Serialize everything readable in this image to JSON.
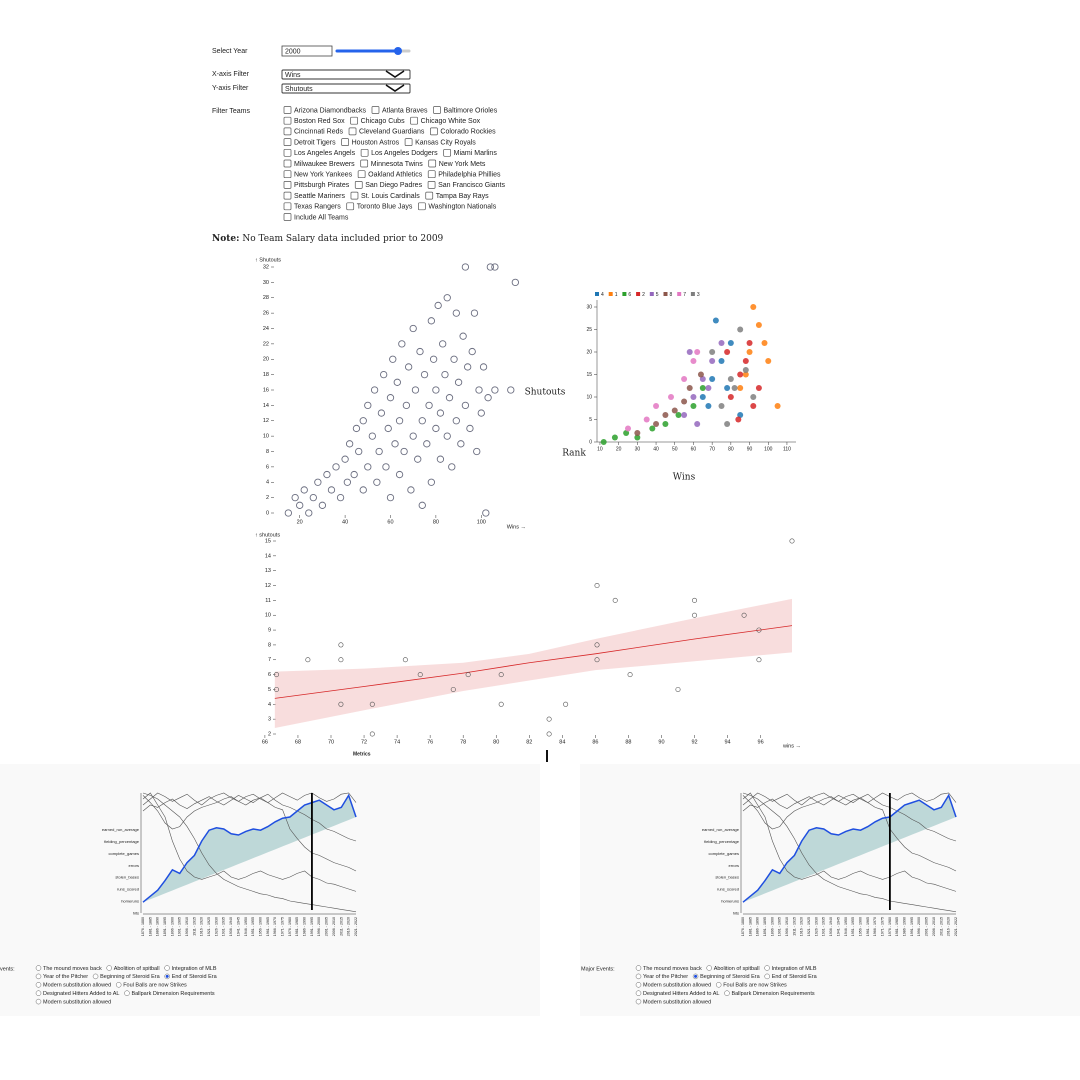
{
  "controls": {
    "year_label": "Select Year",
    "year_value": "2000",
    "x_label": "X-axis Filter",
    "x_value": "Wins",
    "y_label": "Y-axis Filter",
    "y_value": "Shutouts",
    "teams_label": "Filter Teams",
    "teams": [
      [
        "Arizona Diamondbacks",
        "Atlanta Braves",
        "Baltimore Orioles"
      ],
      [
        "Boston Red Sox",
        "Chicago Cubs",
        "Chicago White Sox"
      ],
      [
        "Cincinnati Reds",
        "Cleveland Guardians",
        "Colorado Rockies"
      ],
      [
        "Detroit Tigers",
        "Houston Astros",
        "Kansas City Royals"
      ],
      [
        "Los Angeles Angels",
        "Los Angeles Dodgers",
        "Miami Marlins"
      ],
      [
        "Milwaukee Brewers",
        "Minnesota Twins",
        "New York Mets"
      ],
      [
        "New York Yankees",
        "Oakland Athletics",
        "Philadelphia Phillies"
      ],
      [
        "Pittsburgh Pirates",
        "San Diego Padres",
        "San Francisco Giants"
      ],
      [
        "Seattle Mariners",
        "St. Louis Cardinals",
        "Tampa Bay Rays"
      ],
      [
        "Texas Rangers",
        "Toronto Blue Jays",
        "Washington Nationals"
      ],
      [
        "Include All Teams"
      ]
    ],
    "note_bold": "Note:",
    "note_text": "No Team Salary data included prior to 2009"
  },
  "chart_data": [
    {
      "type": "scatter",
      "y_label": "↑ Shutouts",
      "x_label": "Wins →",
      "color": "#6b6e80",
      "xlim": [
        10,
        116
      ],
      "ylim": [
        0,
        32
      ],
      "xticks": [
        20,
        40,
        60,
        80,
        100
      ],
      "yticks": [
        0,
        2,
        4,
        6,
        8,
        10,
        12,
        14,
        16,
        18,
        20,
        22,
        24,
        26,
        28,
        30,
        32
      ],
      "x": [
        15,
        18,
        20,
        22,
        24,
        26,
        28,
        30,
        32,
        34,
        36,
        38,
        40,
        41,
        42,
        44,
        45,
        46,
        48,
        48,
        50,
        50,
        52,
        53,
        54,
        55,
        56,
        57,
        58,
        59,
        60,
        60,
        61,
        62,
        63,
        64,
        64,
        65,
        66,
        67,
        68,
        69,
        70,
        70,
        71,
        72,
        73,
        74,
        74,
        75,
        76,
        77,
        78,
        78,
        79,
        80,
        80,
        81,
        82,
        82,
        83,
        84,
        85,
        85,
        86,
        87,
        88,
        89,
        89,
        90,
        91,
        92,
        93,
        94,
        95,
        96,
        97,
        98,
        99,
        100,
        101,
        102,
        103,
        106,
        115,
        93,
        104,
        106,
        113
      ],
      "values": [
        0,
        2,
        1,
        3,
        0,
        2,
        4,
        1,
        5,
        3,
        6,
        2,
        7,
        4,
        9,
        5,
        11,
        8,
        3,
        12,
        6,
        14,
        10,
        16,
        4,
        8,
        13,
        18,
        6,
        11,
        2,
        15,
        20,
        9,
        17,
        5,
        12,
        22,
        8,
        14,
        19,
        3,
        10,
        24,
        16,
        7,
        21,
        12,
        1,
        18,
        9,
        14,
        25,
        4,
        20,
        11,
        16,
        27,
        7,
        13,
        22,
        18,
        10,
        28,
        15,
        6,
        20,
        12,
        26,
        17,
        9,
        23,
        14,
        19,
        11,
        21,
        26,
        8,
        16,
        13,
        19,
        0,
        15,
        16,
        30,
        32,
        32,
        32,
        16
      ]
    },
    {
      "type": "scatter",
      "y_label": "Shutouts",
      "x_label": "Wins",
      "color_label": "Rank",
      "xlim": [
        5,
        115
      ],
      "ylim": [
        0,
        33
      ],
      "xticks": [
        10,
        20,
        30,
        40,
        50,
        60,
        70,
        80,
        90,
        100,
        110
      ],
      "yticks": [
        0,
        5,
        10,
        15,
        20,
        25,
        30
      ],
      "series": [
        {
          "name": "4",
          "color": "#1f77b4",
          "x": [
            65,
            70,
            75,
            80,
            85,
            72,
            78,
            68
          ],
          "values": [
            10,
            14,
            18,
            22,
            6,
            27,
            12,
            8
          ]
        },
        {
          "name": "1",
          "color": "#ff7f0e",
          "x": [
            85,
            90,
            95,
            100,
            105,
            92,
            88,
            98
          ],
          "values": [
            12,
            20,
            26,
            18,
            8,
            30,
            15,
            22
          ]
        },
        {
          "name": "6",
          "color": "#2ca02c",
          "x": [
            12,
            18,
            24,
            30,
            38,
            45,
            52,
            60,
            65
          ],
          "values": [
            0,
            1,
            2,
            1,
            3,
            4,
            6,
            8,
            12
          ]
        },
        {
          "name": "2",
          "color": "#d62728",
          "x": [
            80,
            85,
            90,
            95,
            84,
            88,
            92,
            78
          ],
          "values": [
            10,
            15,
            22,
            12,
            5,
            18,
            8,
            20
          ]
        },
        {
          "name": "5",
          "color": "#9467bd",
          "x": [
            55,
            60,
            65,
            70,
            75,
            62,
            68,
            58
          ],
          "values": [
            6,
            10,
            14,
            18,
            22,
            4,
            12,
            20
          ]
        },
        {
          "name": "8",
          "color": "#8c564b",
          "x": [
            30,
            40,
            45,
            50,
            55,
            58,
            64
          ],
          "values": [
            2,
            4,
            6,
            7,
            9,
            12,
            15
          ]
        },
        {
          "name": "7",
          "color": "#e377c2",
          "x": [
            25,
            35,
            40,
            48,
            55,
            60,
            62
          ],
          "values": [
            3,
            5,
            8,
            10,
            14,
            18,
            20
          ]
        },
        {
          "name": "3",
          "color": "#7f7f7f",
          "x": [
            75,
            82,
            88,
            70,
            78,
            85,
            92,
            80
          ],
          "values": [
            8,
            12,
            16,
            20,
            4,
            25,
            10,
            14
          ]
        }
      ]
    },
    {
      "type": "scatter",
      "y_label": "↑ shutouts",
      "x_label": "wins →",
      "color": "#555555",
      "xlim": [
        65.4,
        97.9
      ],
      "ylim": [
        2,
        15
      ],
      "xticks": [
        66,
        68,
        70,
        72,
        74,
        76,
        78,
        80,
        82,
        84,
        86,
        88,
        90,
        92,
        94,
        96
      ],
      "yticks": [
        2,
        3,
        4,
        5,
        6,
        7,
        8,
        9,
        10,
        11,
        12,
        13,
        14,
        15
      ],
      "x": [
        66.7,
        66.7,
        68.6,
        70.6,
        70.6,
        70.6,
        72.5,
        72.5,
        74.5,
        75.4,
        77.4,
        78.3,
        80.3,
        80.3,
        83.2,
        83.2,
        84.2,
        86.1,
        86.1,
        86.1,
        87.2,
        88.1,
        91,
        92,
        92,
        95,
        95.9,
        95.9,
        97.9
      ],
      "values": [
        6,
        5,
        7,
        8,
        7,
        4,
        4,
        2,
        7,
        6,
        5,
        6,
        6,
        4,
        3,
        2,
        4,
        12,
        8,
        7,
        11,
        6,
        5,
        11,
        10,
        10,
        9,
        7,
        15
      ],
      "fit": {
        "color": "#d62728",
        "band_color": "#f4c7c7",
        "x": [
          66.6,
          72,
          78,
          82,
          86,
          92,
          97.9
        ],
        "values": [
          4.4,
          5.2,
          6.1,
          6.8,
          7.4,
          8.4,
          9.3
        ],
        "lower": [
          2.4,
          3.6,
          4.9,
          5.6,
          6.3,
          6.9,
          7.5
        ],
        "upper": [
          6.2,
          6.4,
          6.8,
          7.4,
          8.4,
          9.8,
          11.1
        ]
      }
    },
    {
      "type": "line",
      "title": "Metrics",
      "ylim": [
        0,
        1
      ],
      "area_color": "#a9cccc",
      "y_categories": [
        "earned_run_average",
        "fielding_percentage",
        "complete_games",
        "errors",
        "stolen_bases",
        "runs_scored",
        "homeruns",
        "hits"
      ],
      "categories": [
        "1876 - 1880",
        "1881 - 1885",
        "1886 - 1890",
        "1891 - 1895",
        "1896 - 1900",
        "1901 - 1905",
        "1906 - 1910",
        "1911 - 1915",
        "1916 - 1920",
        "1921 - 1925",
        "1926 - 1930",
        "1931 - 1935",
        "1936 - 1940",
        "1941 - 1945",
        "1946 - 1950",
        "1951 - 1955",
        "1956 - 1960",
        "1961 - 1965",
        "1966 - 1970",
        "1971 - 1975",
        "1976 - 1980",
        "1981 - 1985",
        "1986 - 1990",
        "1991 - 1995",
        "1996 - 2000",
        "2001 - 2005",
        "2006 - 2010",
        "2011 - 2015",
        "2016 - 2020",
        "2021 - 2022"
      ],
      "series": [
        {
          "color": "#555555",
          "values": [
            1,
            0.98,
            0.95,
            0.9,
            0.85,
            0.8,
            0.72,
            0.62,
            0.5,
            0.4,
            0.33,
            0.28,
            0.25,
            0.22,
            0.2,
            0.18,
            0.16,
            0.15,
            0.13,
            0.12,
            0.1,
            0.09,
            0.08,
            0.07,
            0.06,
            0.05,
            0.04,
            0.03,
            0.02,
            0.01
          ]
        },
        {
          "color": "#555555",
          "values": [
            0.95,
            1,
            0.9,
            0.8,
            0.6,
            0.45,
            0.35,
            0.3,
            0.28,
            0.3,
            0.32,
            0.35,
            0.3,
            0.28,
            0.3,
            0.33,
            0.35,
            0.32,
            0.3,
            0.28,
            0.3,
            0.33,
            0.35,
            0.3,
            0.28,
            0.25,
            0.24,
            0.22,
            0.2,
            0.18
          ]
        },
        {
          "color": "#555555",
          "values": [
            0.9,
            0.95,
            1,
            0.97,
            0.93,
            0.96,
            0.99,
            0.94,
            0.9,
            0.95,
            0.98,
            1,
            0.96,
            0.93,
            0.97,
            0.99,
            0.95,
            0.92,
            0.96,
            1,
            0.97,
            0.94,
            0.98,
            1,
            0.96,
            0.93,
            0.95,
            0.99,
            1,
            0.92
          ]
        },
        {
          "color": "#555555",
          "values": [
            0.85,
            0.9,
            0.88,
            0.92,
            0.95,
            0.9,
            0.87,
            0.91,
            0.94,
            0.97,
            0.93,
            0.9,
            0.94,
            0.98,
            0.95,
            0.92,
            0.96,
            0.99,
            0.94,
            0.9,
            0.88,
            0.85,
            0.82,
            0.78,
            0.75,
            0.7,
            0.68,
            0.65,
            0.62,
            0.6
          ]
        },
        {
          "color": "#555555",
          "values": [
            0.98,
            0.92,
            0.85,
            0.75,
            0.7,
            0.72,
            0.8,
            0.85,
            0.88,
            0.9,
            0.92,
            0.95,
            0.97,
            0.93,
            0.9,
            0.94,
            0.96,
            0.92,
            0.88,
            0.86,
            0.7,
            0.62,
            0.55,
            0.5,
            0.48,
            0.45,
            0.42,
            0.4,
            0.38,
            0.35
          ]
        },
        {
          "color": "#1f4fe0",
          "values": [
            0.09,
            0.14,
            0.19,
            0.27,
            0.36,
            0.33,
            0.42,
            0.48,
            0.6,
            0.69,
            0.71,
            0.7,
            0.66,
            0.65,
            0.68,
            0.7,
            0.69,
            0.72,
            0.76,
            0.79,
            0.8,
            0.85,
            0.9,
            0.92,
            0.94,
            0.9,
            0.86,
            0.88,
            0.98,
            0.8
          ]
        }
      ]
    }
  ],
  "events": {
    "label": "Major Events:",
    "options": [
      [
        "The mound moves back",
        "Abolition of spitball",
        "Integration of MLB"
      ],
      [
        "Year of the Pitcher",
        "Beginning of Steroid Era",
        "End of Steroid Era"
      ],
      [
        "Modern substitution allowed",
        "Foul Balls are now Strikes"
      ],
      [
        "Designated Hitters Added to AL",
        "Ballpark Dimension Requirements"
      ],
      [
        "Modern substitution allowed"
      ]
    ],
    "panels": [
      {
        "selected": "End of Steroid Era",
        "marker": "1991 - 1995"
      },
      {
        "selected": "Beginning of Steroid Era",
        "marker": "1976 - 1980"
      }
    ]
  }
}
